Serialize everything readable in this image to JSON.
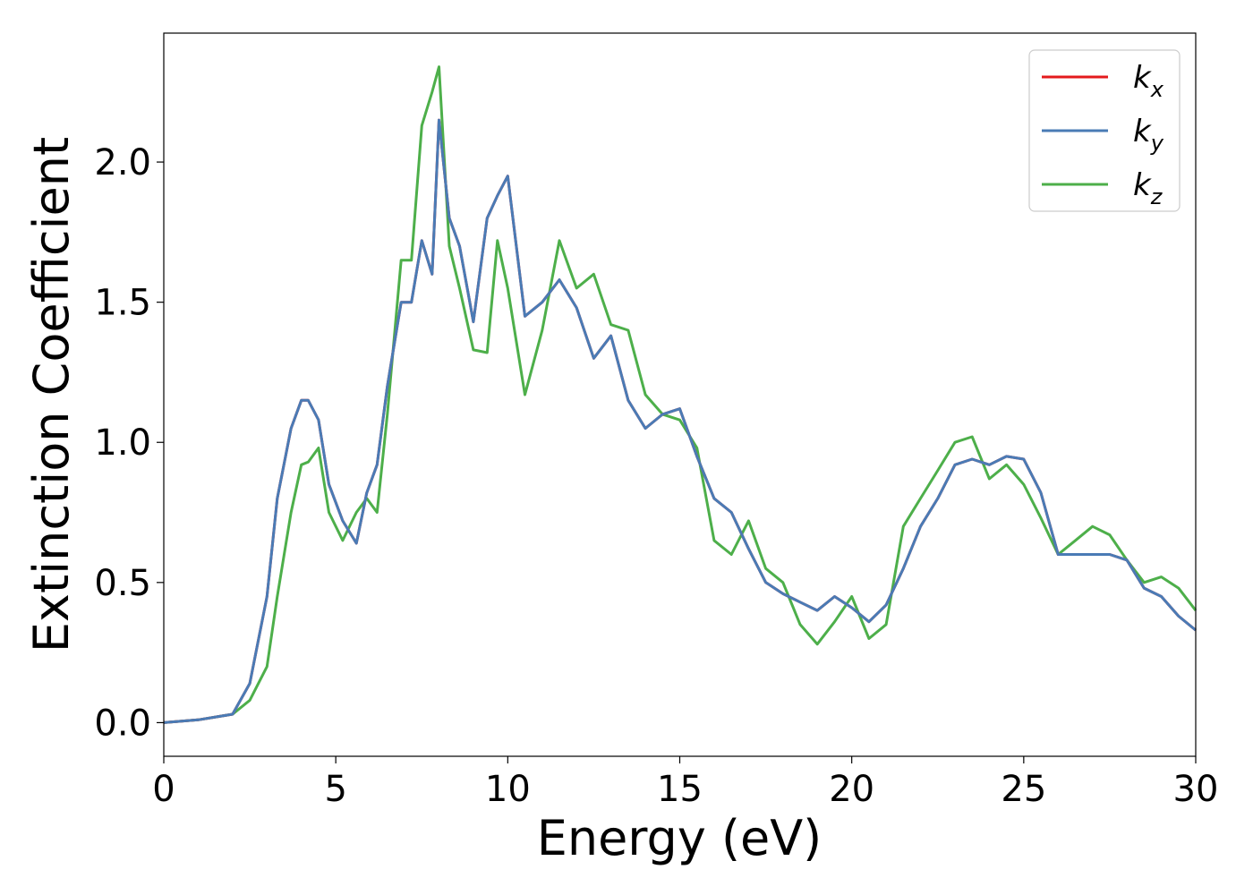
{
  "chart_data": {
    "type": "line",
    "xlabel": "Energy (eV)",
    "ylabel": "Extinction Coefficient",
    "xlim": [
      0,
      30
    ],
    "ylim": [
      -0.12,
      2.46
    ],
    "xticks": [
      "0",
      "5",
      "10",
      "15",
      "20",
      "25",
      "30"
    ],
    "yticks": [
      "0.0",
      "0.5",
      "1.0",
      "1.5",
      "2.0"
    ],
    "grid": false,
    "legend_position": "top-right",
    "series": [
      {
        "name": "k",
        "subscript": "x",
        "color": "#e41a1c",
        "x": [
          0,
          1,
          2,
          2.5,
          3,
          3.3,
          3.7,
          4,
          4.2,
          4.5,
          4.8,
          5.2,
          5.6,
          5.9,
          6.2,
          6.5,
          6.9,
          7.2,
          7.5,
          7.8,
          8,
          8.3,
          8.6,
          9,
          9.4,
          9.7,
          10,
          10.5,
          11,
          11.5,
          12,
          12.5,
          13,
          13.5,
          14,
          14.5,
          15,
          15.5,
          16,
          16.5,
          17,
          17.5,
          18,
          18.5,
          19,
          19.5,
          20,
          20.5,
          21,
          21.5,
          22,
          22.5,
          23,
          23.5,
          24,
          24.5,
          25,
          25.5,
          26,
          26.5,
          27,
          27.5,
          28,
          28.5,
          29,
          29.5,
          30
        ],
        "values": [
          0,
          0.01,
          0.03,
          0.14,
          0.45,
          0.8,
          1.05,
          1.15,
          1.15,
          1.08,
          0.85,
          0.72,
          0.64,
          0.82,
          0.92,
          1.2,
          1.5,
          1.5,
          1.72,
          1.6,
          2.15,
          1.8,
          1.7,
          1.43,
          1.8,
          1.88,
          1.95,
          1.45,
          1.5,
          1.58,
          1.48,
          1.3,
          1.38,
          1.15,
          1.05,
          1.1,
          1.12,
          0.95,
          0.8,
          0.75,
          0.62,
          0.5,
          0.46,
          0.43,
          0.4,
          0.45,
          0.41,
          0.36,
          0.42,
          0.55,
          0.7,
          0.8,
          0.92,
          0.94,
          0.92,
          0.95,
          0.94,
          0.82,
          0.6,
          0.6,
          0.6,
          0.6,
          0.58,
          0.48,
          0.45,
          0.38,
          0.33
        ]
      },
      {
        "name": "k",
        "subscript": "y",
        "color": "#4a7bb5",
        "x": [
          0,
          1,
          2,
          2.5,
          3,
          3.3,
          3.7,
          4,
          4.2,
          4.5,
          4.8,
          5.2,
          5.6,
          5.9,
          6.2,
          6.5,
          6.9,
          7.2,
          7.5,
          7.8,
          8,
          8.3,
          8.6,
          9,
          9.4,
          9.7,
          10,
          10.5,
          11,
          11.5,
          12,
          12.5,
          13,
          13.5,
          14,
          14.5,
          15,
          15.5,
          16,
          16.5,
          17,
          17.5,
          18,
          18.5,
          19,
          19.5,
          20,
          20.5,
          21,
          21.5,
          22,
          22.5,
          23,
          23.5,
          24,
          24.5,
          25,
          25.5,
          26,
          26.5,
          27,
          27.5,
          28,
          28.5,
          29,
          29.5,
          30
        ],
        "values": [
          0,
          0.01,
          0.03,
          0.14,
          0.45,
          0.8,
          1.05,
          1.15,
          1.15,
          1.08,
          0.85,
          0.72,
          0.64,
          0.82,
          0.92,
          1.2,
          1.5,
          1.5,
          1.72,
          1.6,
          2.15,
          1.8,
          1.7,
          1.43,
          1.8,
          1.88,
          1.95,
          1.45,
          1.5,
          1.58,
          1.48,
          1.3,
          1.38,
          1.15,
          1.05,
          1.1,
          1.12,
          0.95,
          0.8,
          0.75,
          0.62,
          0.5,
          0.46,
          0.43,
          0.4,
          0.45,
          0.41,
          0.36,
          0.42,
          0.55,
          0.7,
          0.8,
          0.92,
          0.94,
          0.92,
          0.95,
          0.94,
          0.82,
          0.6,
          0.6,
          0.6,
          0.6,
          0.58,
          0.48,
          0.45,
          0.38,
          0.33
        ]
      },
      {
        "name": "k",
        "subscript": "z",
        "color": "#4daf4a",
        "x": [
          0,
          1,
          2,
          2.5,
          3,
          3.3,
          3.7,
          4,
          4.2,
          4.5,
          4.8,
          5.2,
          5.6,
          5.9,
          6.2,
          6.5,
          6.9,
          7.2,
          7.5,
          7.8,
          8,
          8.3,
          8.6,
          9,
          9.4,
          9.7,
          10,
          10.5,
          11,
          11.5,
          12,
          12.5,
          13,
          13.5,
          14,
          14.5,
          15,
          15.5,
          16,
          16.5,
          17,
          17.5,
          18,
          18.5,
          19,
          19.5,
          20,
          20.5,
          21,
          21.5,
          22,
          22.5,
          23,
          23.5,
          24,
          24.5,
          25,
          25.5,
          26,
          26.5,
          27,
          27.5,
          28,
          28.5,
          29,
          29.5,
          30
        ],
        "values": [
          0,
          0.01,
          0.03,
          0.08,
          0.2,
          0.45,
          0.75,
          0.92,
          0.93,
          0.98,
          0.75,
          0.65,
          0.75,
          0.8,
          0.75,
          1.1,
          1.65,
          1.65,
          2.13,
          2.25,
          2.34,
          1.7,
          1.55,
          1.33,
          1.32,
          1.72,
          1.55,
          1.17,
          1.4,
          1.72,
          1.55,
          1.6,
          1.42,
          1.4,
          1.17,
          1.1,
          1.08,
          0.98,
          0.65,
          0.6,
          0.72,
          0.55,
          0.5,
          0.35,
          0.28,
          0.36,
          0.45,
          0.3,
          0.35,
          0.7,
          0.8,
          0.9,
          1.0,
          1.02,
          0.87,
          0.92,
          0.85,
          0.73,
          0.6,
          0.65,
          0.7,
          0.67,
          0.58,
          0.5,
          0.52,
          0.48,
          0.4
        ]
      }
    ]
  }
}
